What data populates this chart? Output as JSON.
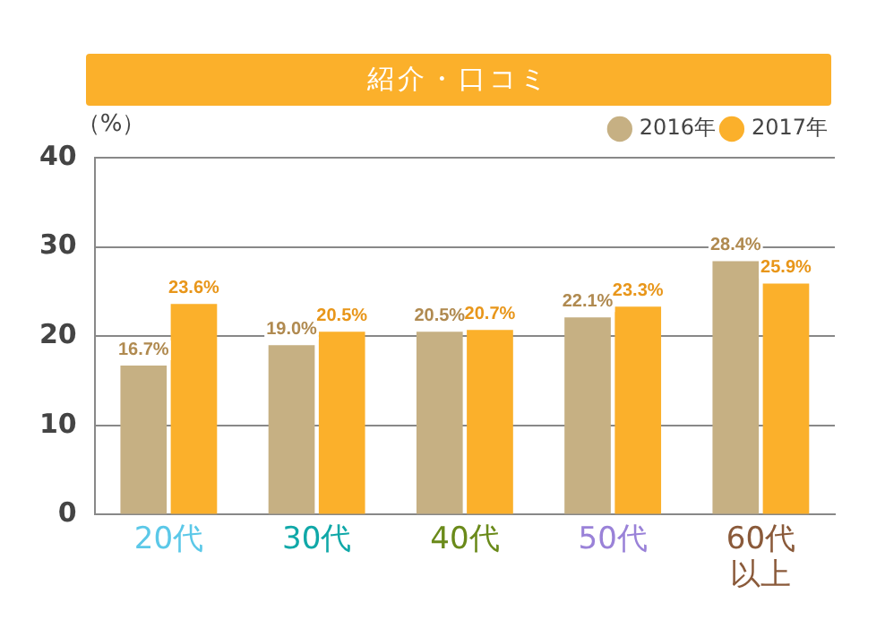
{
  "chart_data": {
    "type": "bar",
    "title": "紹介・口コミ",
    "ylabel": "（%）",
    "categories": [
      "20代",
      "30代",
      "40代",
      "50代",
      "60代以上"
    ],
    "series": [
      {
        "name": "2016年",
        "color": "#c6b083",
        "values": [
          16.7,
          19.0,
          20.5,
          22.1,
          28.4
        ],
        "value_labels": [
          "16.7%",
          "19.0%",
          "20.5%",
          "22.1%",
          "28.4%"
        ]
      },
      {
        "name": "2017年",
        "color": "#fbb02b",
        "values": [
          23.6,
          20.5,
          20.7,
          23.3,
          25.9
        ],
        "value_labels": [
          "23.6%",
          "20.5%",
          "20.7%",
          "23.3%",
          "25.9%"
        ]
      }
    ],
    "ylim": [
      0,
      40
    ],
    "yticks": [
      0,
      10,
      20,
      30,
      40
    ],
    "grid": "y",
    "legend": "top right"
  }
}
